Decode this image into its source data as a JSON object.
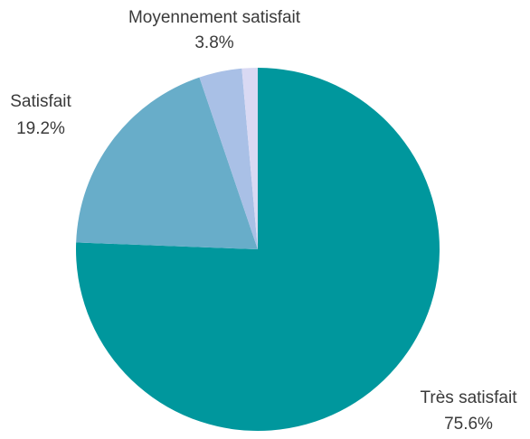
{
  "chart_data": {
    "type": "pie",
    "categories": [
      "Très satisfait",
      "Satisfait",
      "Moyennement satisfait",
      null
    ],
    "values": [
      75.6,
      19.2,
      3.8,
      1.4
    ],
    "value_labels": [
      "75.6%",
      "19.2%",
      "3.8%",
      null
    ],
    "colors": [
      "#00979d",
      "#68adc9",
      "#a9c0e6",
      "#d9d9f3"
    ]
  }
}
